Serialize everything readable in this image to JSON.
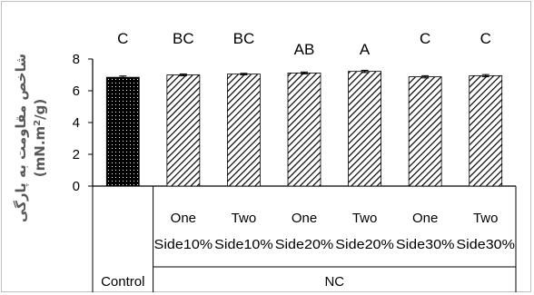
{
  "chart_data": {
    "type": "bar",
    "title": "",
    "ylabel_line1": "شاخص مقاومت به پارگی",
    "ylabel_line2": "(mN.m^2/g)",
    "ylim": [
      0,
      8
    ],
    "yticks": [
      0,
      2,
      4,
      6,
      8
    ],
    "grid": false,
    "legend": "none",
    "categories": [
      {
        "line1": "",
        "line2": "Control"
      },
      {
        "line1": "One",
        "line2": "Side10%"
      },
      {
        "line1": "Two",
        "line2": "Side10%"
      },
      {
        "line1": "One",
        "line2": "Side20%"
      },
      {
        "line1": "Two",
        "line2": "Side20%"
      },
      {
        "line1": "One",
        "line2": "Side30%"
      },
      {
        "line1": "Two",
        "line2": "Side30%"
      }
    ],
    "groups": [
      {
        "label": "Control",
        "span": [
          0,
          0
        ]
      },
      {
        "label": "NC",
        "span": [
          1,
          6
        ]
      }
    ],
    "values": [
      6.85,
      7.0,
      7.05,
      7.12,
      7.22,
      6.88,
      6.95
    ],
    "errors": [
      0.08,
      0.06,
      0.05,
      0.06,
      0.07,
      0.07,
      0.07
    ],
    "significance": [
      "C",
      "BC",
      "BC",
      "AB",
      "A",
      "C",
      "C"
    ],
    "styles": [
      "dotted",
      "hatched",
      "hatched",
      "hatched",
      "hatched",
      "hatched",
      "hatched"
    ],
    "colors": {
      "axis": "#000000",
      "bar": "#000000",
      "frame": "#bfbfbf",
      "ylabel": "#595959"
    }
  }
}
